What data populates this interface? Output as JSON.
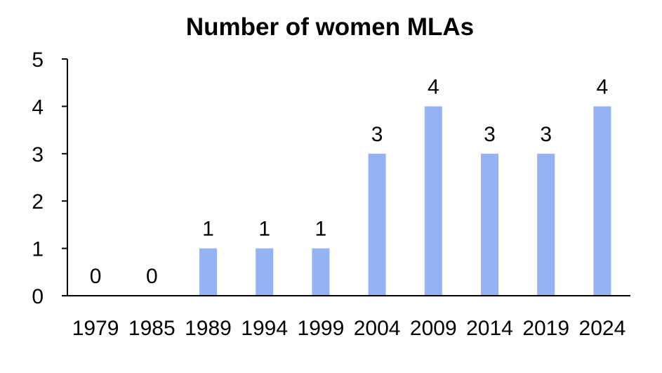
{
  "chart_data": {
    "type": "bar",
    "title": "Number of women MLAs",
    "xlabel": "",
    "ylabel": "",
    "categories": [
      "1979",
      "1985",
      "1989",
      "1994",
      "1999",
      "2004",
      "2009",
      "2014",
      "2019",
      "2024"
    ],
    "values": [
      0,
      0,
      1,
      1,
      1,
      3,
      4,
      3,
      3,
      4
    ],
    "data_labels": [
      "0",
      "0",
      "1",
      "1",
      "1",
      "3",
      "4",
      "3",
      "3",
      "4"
    ],
    "y_ticks": [
      "0",
      "1",
      "2",
      "3",
      "4",
      "5"
    ],
    "ylim": [
      0,
      5
    ],
    "grid": false,
    "legend": "none",
    "bar_color": "#95b3f3"
  }
}
